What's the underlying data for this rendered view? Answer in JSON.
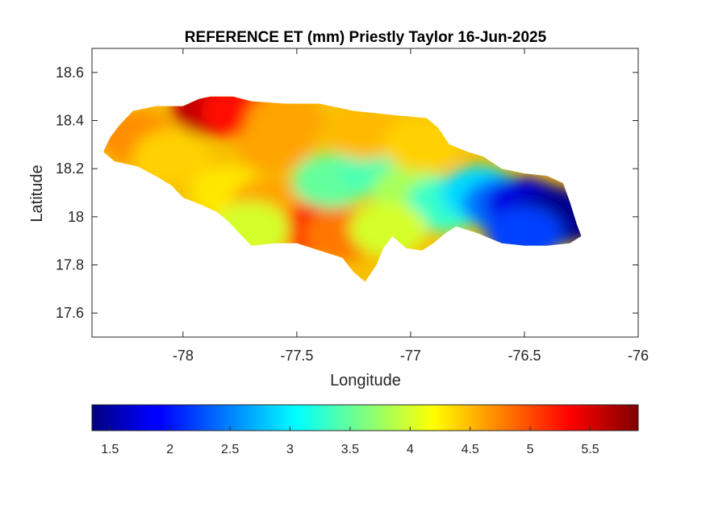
{
  "figure": {
    "title": "REFERENCE ET (mm) Priestly Taylor 16-Jun-2025",
    "xlabel": "Longitude",
    "ylabel": "Latitude"
  },
  "axes": {
    "xlim": [
      -78.4,
      -76
    ],
    "ylim": [
      17.5,
      18.7
    ],
    "xticks": [
      -78,
      -77.5,
      -77,
      -76.5,
      -76
    ],
    "yticks": [
      17.6,
      17.8,
      18,
      18.2,
      18.4,
      18.6
    ],
    "xtick_labels": [
      "-78",
      "-77.5",
      "-77",
      "-76.5",
      "-76"
    ],
    "ytick_labels": [
      "17.6",
      "17.8",
      "18",
      "18.2",
      "18.4",
      "18.6"
    ]
  },
  "colorbar": {
    "colormap": "jet",
    "clim": [
      1.35,
      5.9
    ],
    "orientation": "horizontal",
    "ticks": [
      1.5,
      2,
      2.5,
      3,
      3.5,
      4,
      4.5,
      5,
      5.5
    ],
    "tick_labels": [
      "1.5",
      "2",
      "2.5",
      "3",
      "3.5",
      "4",
      "4.5",
      "5",
      "5.5"
    ]
  },
  "map": {
    "region": "Jamaica",
    "units": "mm",
    "outline_lonlat": [
      [
        -78.35,
        18.27
      ],
      [
        -78.32,
        18.33
      ],
      [
        -78.28,
        18.38
      ],
      [
        -78.22,
        18.44
      ],
      [
        -78.12,
        18.46
      ],
      [
        -78.0,
        18.46
      ],
      [
        -77.93,
        18.49
      ],
      [
        -77.88,
        18.5
      ],
      [
        -77.78,
        18.5
      ],
      [
        -77.7,
        18.48
      ],
      [
        -77.55,
        18.47
      ],
      [
        -77.4,
        18.47
      ],
      [
        -77.25,
        18.44
      ],
      [
        -77.15,
        18.43
      ],
      [
        -77.05,
        18.42
      ],
      [
        -76.93,
        18.41
      ],
      [
        -76.88,
        18.37
      ],
      [
        -76.83,
        18.3
      ],
      [
        -76.75,
        18.27
      ],
      [
        -76.68,
        18.25
      ],
      [
        -76.6,
        18.2
      ],
      [
        -76.5,
        18.18
      ],
      [
        -76.4,
        18.17
      ],
      [
        -76.33,
        18.14
      ],
      [
        -76.3,
        18.06
      ],
      [
        -76.27,
        17.97
      ],
      [
        -76.25,
        17.92
      ],
      [
        -76.3,
        17.89
      ],
      [
        -76.4,
        17.88
      ],
      [
        -76.5,
        17.88
      ],
      [
        -76.6,
        17.89
      ],
      [
        -76.7,
        17.93
      ],
      [
        -76.8,
        17.96
      ],
      [
        -76.85,
        17.93
      ],
      [
        -76.9,
        17.89
      ],
      [
        -76.95,
        17.86
      ],
      [
        -77.02,
        17.87
      ],
      [
        -77.08,
        17.92
      ],
      [
        -77.12,
        17.87
      ],
      [
        -77.15,
        17.8
      ],
      [
        -77.2,
        17.73
      ],
      [
        -77.25,
        17.77
      ],
      [
        -77.3,
        17.83
      ],
      [
        -77.4,
        17.86
      ],
      [
        -77.5,
        17.89
      ],
      [
        -77.6,
        17.89
      ],
      [
        -77.7,
        17.88
      ],
      [
        -77.75,
        17.93
      ],
      [
        -77.8,
        17.98
      ],
      [
        -77.85,
        18.02
      ],
      [
        -77.92,
        18.05
      ],
      [
        -78.0,
        18.08
      ],
      [
        -78.05,
        18.13
      ],
      [
        -78.12,
        18.17
      ],
      [
        -78.2,
        18.21
      ],
      [
        -78.3,
        18.23
      ],
      [
        -78.35,
        18.27
      ]
    ],
    "et_centers_lon_lat_value": [
      [
        -77.88,
        18.45,
        5.6
      ],
      [
        -77.75,
        18.44,
        5.3
      ],
      [
        -77.55,
        18.4,
        4.6
      ],
      [
        -78.2,
        18.33,
        4.7
      ],
      [
        -78.05,
        18.25,
        4.4
      ],
      [
        -77.8,
        18.1,
        4.3
      ],
      [
        -77.62,
        18.05,
        4.6
      ],
      [
        -77.4,
        17.95,
        5.3
      ],
      [
        -77.3,
        17.93,
        4.8
      ],
      [
        -77.35,
        18.15,
        3.5
      ],
      [
        -77.15,
        18.2,
        3.4
      ],
      [
        -77.0,
        18.1,
        3.8
      ],
      [
        -76.85,
        18.05,
        3.3
      ],
      [
        -76.7,
        18.1,
        2.9
      ],
      [
        -76.6,
        18.05,
        2.4
      ],
      [
        -76.5,
        18.05,
        1.8
      ],
      [
        -76.4,
        18.02,
        1.6
      ],
      [
        -76.33,
        18.0,
        1.4
      ],
      [
        -76.5,
        17.93,
        2.2
      ],
      [
        -77.1,
        17.95,
        4.0
      ],
      [
        -77.6,
        18.3,
        4.6
      ],
      [
        -77.2,
        18.35,
        4.5
      ],
      [
        -76.95,
        18.3,
        4.4
      ],
      [
        -77.7,
        17.95,
        4.0
      ]
    ]
  }
}
